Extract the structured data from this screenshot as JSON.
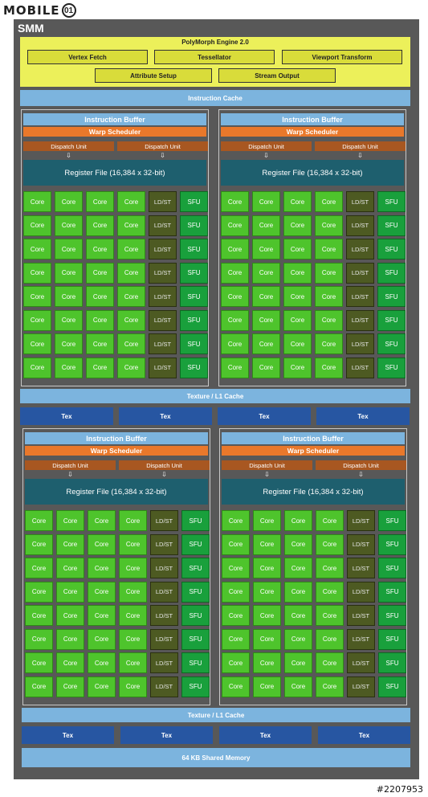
{
  "logo": {
    "text": "MOBILE",
    "badge": "01"
  },
  "watermark": "#2207953",
  "smm": {
    "title": "SMM",
    "polymorph": {
      "title": "PolyMorph Engine 2.0",
      "row1": [
        "Vertex Fetch",
        "Tessellator",
        "Viewport Transform"
      ],
      "row2": [
        "Attribute Setup",
        "Stream Output"
      ]
    },
    "instruction_cache": "Instruction Cache",
    "texture_l1_cache": "Texture / L1 Cache",
    "tex_label": "Tex",
    "shared_memory": "64 KB Shared Memory"
  },
  "processing_block": {
    "instruction_buffer": "Instruction Buffer",
    "warp_scheduler": "Warp Scheduler",
    "dispatch_unit": "Dispatch Unit",
    "dispatch_arrow": "⇩",
    "register_file": "Register File (16,384 x 32-bit)",
    "unit_row": [
      "Core",
      "Core",
      "Core",
      "Core",
      "LD/ST",
      "SFU"
    ],
    "rows": 8
  },
  "colors": {
    "smm_bg": "#585858",
    "polymorph": "#ecf05a",
    "cache": "#7cb4de",
    "tex": "#2756a2",
    "warp": "#e9782b",
    "dispatch": "#a85721",
    "register": "#1e5f6e",
    "core": "#4ec42c",
    "ldst": "#4d5a22",
    "sfu": "#19a03c"
  }
}
